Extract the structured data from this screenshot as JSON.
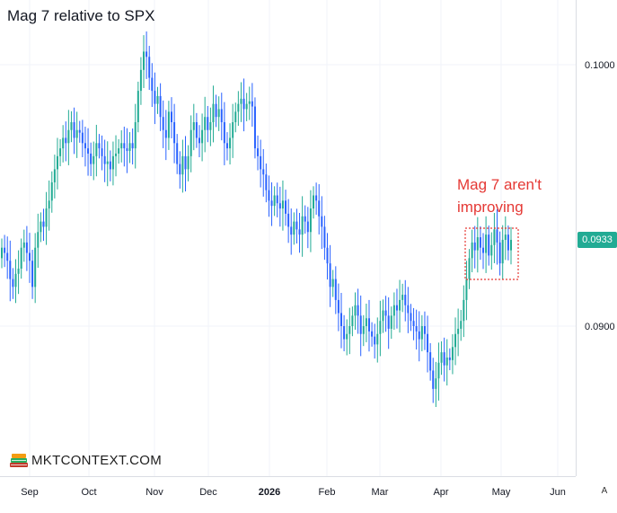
{
  "title": "Mag 7 relative to SPX",
  "watermark": "MKTCONTEXT.COM",
  "annotation": [
    "Mag 7 aren't",
    "improving"
  ],
  "last_price_label": "0.0933",
  "auto_scale_label": "A",
  "colors": {
    "up": "#22ab94",
    "down": "#2962ff",
    "annotation": "#e53935",
    "grid": "#f0f3fa",
    "price_tag": "#22ab94"
  },
  "chart_data": {
    "type": "candlestick",
    "title": "Mag 7 relative to SPX",
    "x_tick_labels": [
      "Sep",
      "Oct",
      "Nov",
      "Dec",
      "2026",
      "Feb",
      "Mar",
      "Apr",
      "May",
      "Jun"
    ],
    "y_tick_labels": [
      "0.1000",
      "0.0900"
    ],
    "ylim": [
      0.0843,
      0.1021
    ],
    "last_value": 0.0933,
    "grid": true,
    "closes": [
      0.093,
      0.0928,
      0.0925,
      0.0918,
      0.0915,
      0.092,
      0.0922,
      0.093,
      0.0932,
      0.0928,
      0.0925,
      0.0915,
      0.093,
      0.0936,
      0.094,
      0.0938,
      0.0945,
      0.0948,
      0.0955,
      0.096,
      0.0965,
      0.0968,
      0.0972,
      0.097,
      0.0975,
      0.0978,
      0.0972,
      0.0975,
      0.0974,
      0.097,
      0.0968,
      0.0966,
      0.0962,
      0.0965,
      0.097,
      0.0968,
      0.0965,
      0.0962,
      0.0963,
      0.096,
      0.0965,
      0.0966,
      0.0968,
      0.097,
      0.0968,
      0.0967,
      0.097,
      0.0968,
      0.0978,
      0.099,
      0.0998,
      0.1005,
      0.1003,
      0.0995,
      0.099,
      0.0985,
      0.0988,
      0.098,
      0.0975,
      0.0972,
      0.0982,
      0.0978,
      0.097,
      0.0962,
      0.0958,
      0.0965,
      0.096,
      0.0965,
      0.0975,
      0.0978,
      0.0972,
      0.097,
      0.0975,
      0.098,
      0.0975,
      0.0978,
      0.0985,
      0.098,
      0.0983,
      0.0978,
      0.097,
      0.0968,
      0.0972,
      0.0978,
      0.0982,
      0.0985,
      0.0987,
      0.0983,
      0.0985,
      0.0986,
      0.0984,
      0.0968,
      0.0965,
      0.096,
      0.0958,
      0.0952,
      0.0948,
      0.0946,
      0.095,
      0.0947,
      0.0945,
      0.0948,
      0.0943,
      0.0938,
      0.0935,
      0.094,
      0.0937,
      0.0935,
      0.0942,
      0.094,
      0.0936,
      0.0945,
      0.095,
      0.0948,
      0.0942,
      0.0938,
      0.093,
      0.0924,
      0.0915,
      0.0918,
      0.091,
      0.0905,
      0.09,
      0.0895,
      0.0897,
      0.09,
      0.0904,
      0.0908,
      0.0904,
      0.0897,
      0.09,
      0.0903,
      0.0898,
      0.0896,
      0.0893,
      0.0897,
      0.0902,
      0.0906,
      0.0904,
      0.0899,
      0.0904,
      0.0908,
      0.0906,
      0.091,
      0.0912,
      0.0908,
      0.0905,
      0.0902,
      0.09,
      0.0898,
      0.0895,
      0.09,
      0.0897,
      0.089,
      0.0883,
      0.0876,
      0.088,
      0.0886,
      0.089,
      0.0885,
      0.0888,
      0.0887,
      0.0892,
      0.0897,
      0.0899,
      0.0902,
      0.091,
      0.0918,
      0.0926,
      0.0932,
      0.0929,
      0.0934,
      0.093,
      0.0928,
      0.0935,
      0.0927,
      0.0931,
      0.0937,
      0.0932,
      0.0924,
      0.0933,
      0.0935,
      0.0929,
      0.0933
    ]
  }
}
